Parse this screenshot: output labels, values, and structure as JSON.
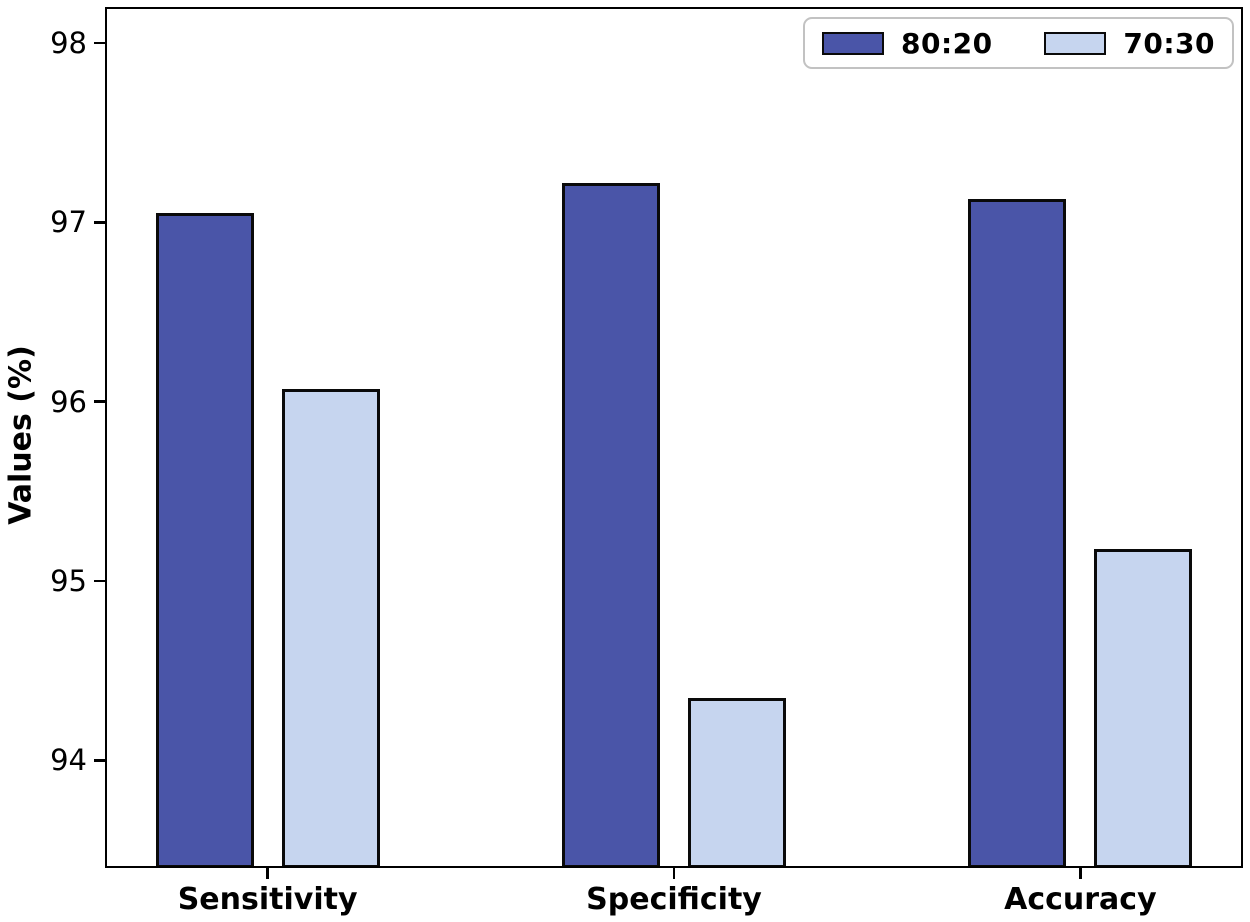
{
  "figure": {
    "background_color": "#ffffff",
    "axis_color": "#000000",
    "text_color": "#000000"
  },
  "chart_data": {
    "type": "bar",
    "title": "",
    "xlabel": "",
    "ylabel": "Values (%)",
    "categories": [
      "Sensitivity",
      "Specificity",
      "Accuracy"
    ],
    "series": [
      {
        "name": "80:20",
        "color": "#4a55a8",
        "edge_color": "#0a0a0a",
        "values": [
          97.05,
          97.22,
          97.13
        ]
      },
      {
        "name": "70:30",
        "color": "#c6d5ef",
        "edge_color": "#0a0a0a",
        "values": [
          96.07,
          94.35,
          95.18
        ]
      }
    ],
    "ylim": [
      93.4,
      98.2
    ],
    "yticks": [
      94,
      95,
      96,
      97,
      98
    ],
    "grid": false,
    "legend_position": "upper right"
  }
}
